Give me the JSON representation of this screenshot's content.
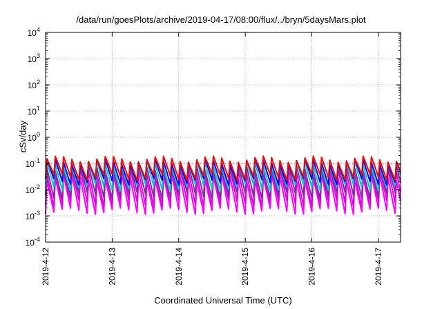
{
  "chart_data": {
    "type": "line",
    "title": "/data/run/goesPlots/archive/2019-04-17/08:00/flux/../bryn/5daysMars.plot",
    "xlabel": "Coordinated Universal Time (UTC)",
    "ylabel": "cSv/day",
    "y_scale": "log",
    "ylim": [
      0.0001,
      10000
    ],
    "y_ticks": [
      {
        "base": "10",
        "exp": "4",
        "value": 10000
      },
      {
        "base": "10",
        "exp": "3",
        "value": 1000
      },
      {
        "base": "10",
        "exp": "2",
        "value": 100
      },
      {
        "base": "10",
        "exp": "1",
        "value": 10
      },
      {
        "base": "10",
        "exp": "0",
        "value": 1
      },
      {
        "base": "10",
        "exp": "-1",
        "value": 0.1
      },
      {
        "base": "10",
        "exp": "-2",
        "value": 0.01
      },
      {
        "base": "10",
        "exp": "-3",
        "value": 0.001
      },
      {
        "base": "10",
        "exp": "-4",
        "value": 0.0001
      }
    ],
    "x_ticks": [
      "2019-4-12",
      "2019-4-13",
      "2019-4-14",
      "2019-4-15",
      "2019-4-16",
      "2019-4-17"
    ],
    "xlim": [
      "2019-04-12 00:00",
      "2019-04-17 08:00"
    ],
    "grid": true,
    "reference_level": 0.1,
    "pattern": {
      "period_hours": 3,
      "envelope": [
        {
          "name": "",
          "peak": 0.15,
          "trough": 0.03
        },
        {
          "name": "",
          "peak": 0.12,
          "trough": 0.02
        },
        {
          "name": "",
          "peak": 0.1,
          "trough": 0.012
        },
        {
          "name": "",
          "peak": 0.07,
          "trough": 0.006
        },
        {
          "name": "",
          "peak": 0.05,
          "trough": 0.003
        },
        {
          "name": "",
          "peak": 0.03,
          "trough": 0.0015
        }
      ]
    },
    "series_colors": [
      "#ff0000",
      "#0000ff",
      "#00c8c8",
      "#7f2fa0",
      "#e000e0",
      "#ff00ff"
    ]
  }
}
